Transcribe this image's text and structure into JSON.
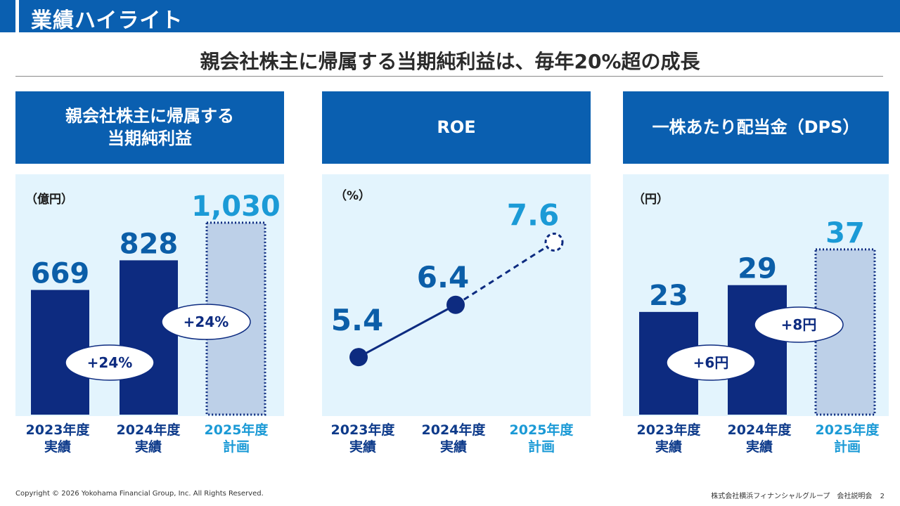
{
  "header": {
    "title": "業績ハイライト"
  },
  "subtitle": "親会社株主に帰属する当期純利益は、毎年20%超の成長",
  "colors": {
    "brand": "#0a5fb0",
    "actual": "#0d2b80",
    "plan_fill": "#bdd0e8",
    "plan_text": "#1b9ad6",
    "value_text": "#0b5ea8",
    "panel_bg": "#e3f4fd"
  },
  "panels": [
    {
      "title_line1": "親会社株主に帰属する",
      "title_line2": "当期純利益"
    },
    {
      "title_line1": "ROE",
      "title_line2": ""
    },
    {
      "title_line1": "一株あたり配当金（DPS）",
      "title_line2": ""
    }
  ],
  "categories": [
    {
      "year": "2023年度",
      "kind": "実績"
    },
    {
      "year": "2024年度",
      "kind": "実績"
    },
    {
      "year": "2025年度",
      "kind": "計画"
    }
  ],
  "chart_data": [
    {
      "type": "bar",
      "title": "親会社株主に帰属する当期純利益",
      "unit_label": "（億円）",
      "categories": [
        "2023年度 実績",
        "2024年度 実績",
        "2025年度 計画"
      ],
      "values": [
        669,
        828,
        1030
      ],
      "value_labels": [
        "669",
        "828",
        "1,030"
      ],
      "planned": [
        false,
        false,
        true
      ],
      "ylim": [
        0,
        1150
      ],
      "growth_labels": [
        "+24%",
        "+24%"
      ]
    },
    {
      "type": "line",
      "title": "ROE",
      "unit_label": "（%）",
      "categories": [
        "2023年度 実績",
        "2024年度 実績",
        "2025年度 計画"
      ],
      "values": [
        5.4,
        6.4,
        7.6
      ],
      "value_labels": [
        "5.4",
        "6.4",
        "7.6"
      ],
      "planned": [
        false,
        false,
        true
      ],
      "ylim": [
        4.3,
        8.4
      ]
    },
    {
      "type": "bar",
      "title": "一株あたり配当金（DPS）",
      "unit_label": "（円）",
      "categories": [
        "2023年度 実績",
        "2024年度 実績",
        "2025年度 計画"
      ],
      "values": [
        23,
        29,
        37
      ],
      "value_labels": [
        "23",
        "29",
        "37"
      ],
      "planned": [
        false,
        false,
        true
      ],
      "ylim": [
        0,
        48
      ],
      "growth_labels": [
        "+6円",
        "+8円"
      ]
    }
  ],
  "footer": {
    "copyright": "Copyright © 2026 Yokohama Financial Group, Inc. All Rights Reserved.",
    "company": "株式会社横浜フィナンシャルグループ　会社説明会",
    "page_number": "2"
  }
}
